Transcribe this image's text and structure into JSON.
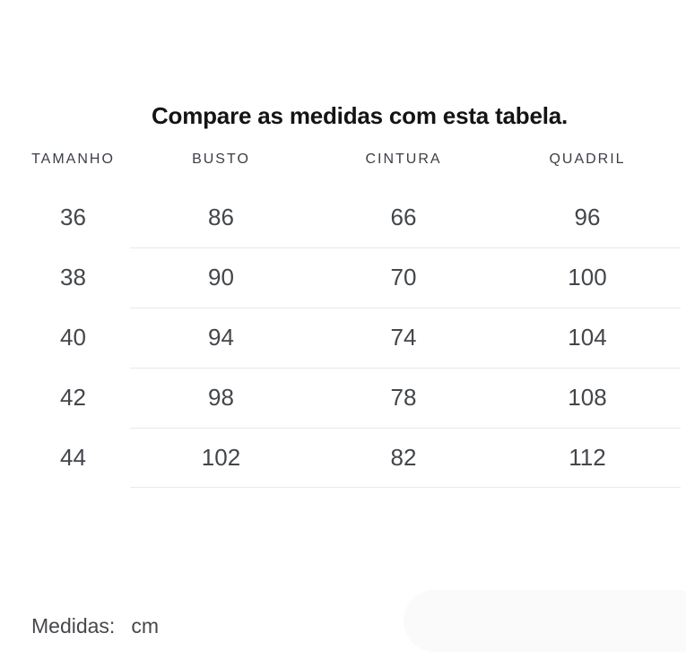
{
  "title": "Compare as medidas com esta tabela.",
  "table": {
    "headers": [
      "TAMANHO",
      "BUSTO",
      "CINTURA",
      "QUADRIL"
    ],
    "rows": [
      [
        "36",
        "86",
        "66",
        "96"
      ],
      [
        "38",
        "90",
        "70",
        "100"
      ],
      [
        "40",
        "94",
        "74",
        "104"
      ],
      [
        "42",
        "98",
        "78",
        "108"
      ],
      [
        "44",
        "102",
        "82",
        "112"
      ]
    ]
  },
  "footer": {
    "label": "Medidas:",
    "unit": "cm"
  },
  "colors": {
    "background": "#ffffff",
    "title_text": "#141414",
    "header_text": "#3a3f45",
    "value_text": "#43464a",
    "divider": "#e9e9e9",
    "pill": "#fafafa"
  }
}
